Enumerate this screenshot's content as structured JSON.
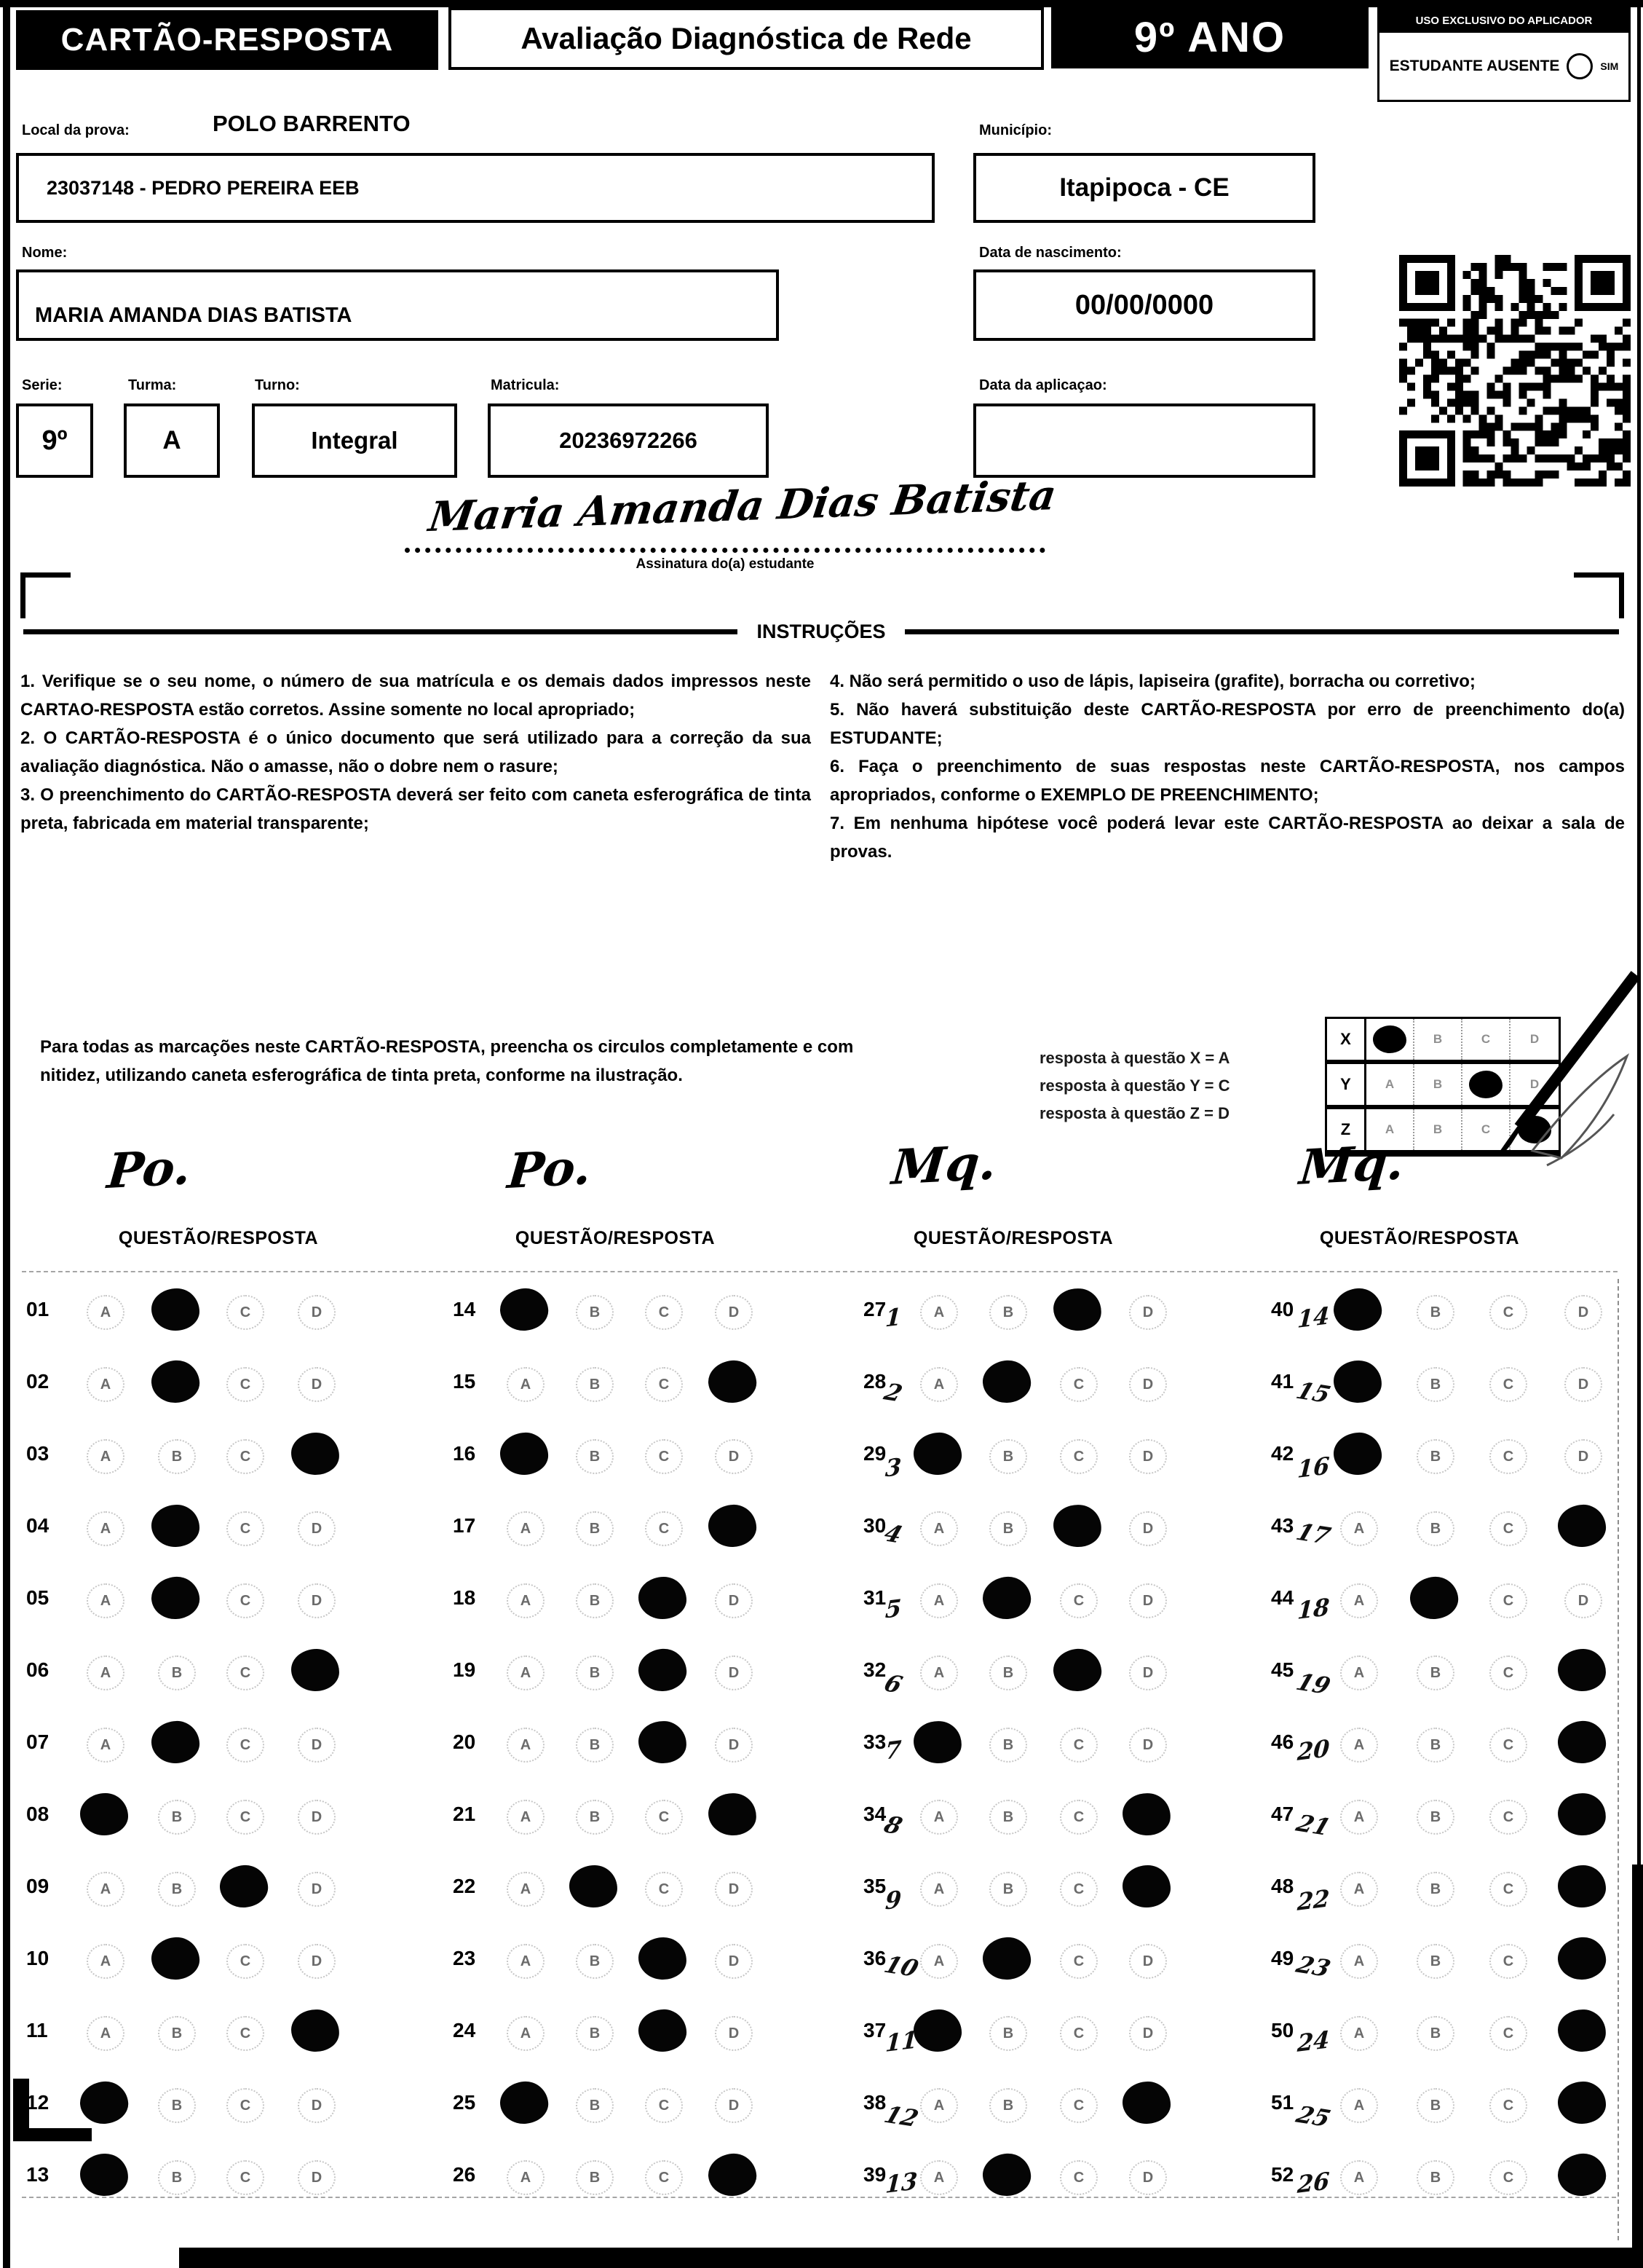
{
  "header": {
    "card_title": "CARTÃO-RESPOSTA",
    "exam_title": "Avaliação Diagnóstica de Rede",
    "grade": "9º ANO",
    "applicator": {
      "title": "USO EXCLUSIVO DO APLICADOR",
      "absent_label": "ESTUDANTE AUSENTE",
      "absent_option": "SIM"
    }
  },
  "student": {
    "local_label": "Local da prova:",
    "local_value": "POLO BARRENTO",
    "school_value": "23037148 - PEDRO PEREIRA EEB",
    "municipio_label": "Município:",
    "municipio_value": "Itapipoca - CE",
    "nome_label": "Nome:",
    "nome_value": "MARIA AMANDA DIAS BATISTA",
    "nascimento_label": "Data de nascimento:",
    "nascimento_value": "00/00/0000",
    "serie_label": "Serie:",
    "serie_value": "9º",
    "turma_label": "Turma:",
    "turma_value": "A",
    "turno_label": "Turno:",
    "turno_value": "Integral",
    "matricula_label": "Matricula:",
    "matricula_value": "20236972266",
    "aplicacao_label": "Data da aplicaçao:",
    "aplicacao_value": "",
    "signature_script": "Maria Amanda Dias Batista",
    "signature_label": "Assinatura do(a) estudante"
  },
  "instructions": {
    "title": "INSTRUÇÕES",
    "left": [
      "1. Verifique se o seu nome, o número de sua matrícula e os demais dados impressos neste CARTAO-RESPOSTA estão corretos. Assine somente no local apropriado;",
      "2. O CARTÃO-RESPOSTA é o único documento que será utilizado para a correção da sua avaliação diagnóstica. Não o amasse, não o dobre nem o rasure;",
      "3. O preenchimento do CARTÃO-RESPOSTA deverá ser feito com caneta esferográfica de tinta preta, fabricada em material transparente;"
    ],
    "right": [
      "4. Não será permitido o uso de lápis, lapiseira (grafite), borracha ou corretivo;",
      "5. Não haverá substituição deste CARTÃO-RESPOSTA por erro de preenchimento do(a) ESTUDANTE;",
      "6. Faça o preenchimento de suas respostas neste CARTÃO-RESPOSTA, nos campos apropriados, conforme o EXEMPLO DE PREENCHIMENTO;",
      "7. Em nenhuma hipótese você poderá levar este CARTÃO-RESPOSTA ao deixar a sala de provas."
    ]
  },
  "marking": {
    "paragraph": "Para todas as marcações neste CARTÃO-RESPOSTA, preencha os circulos completamente e com nitidez, utilizando caneta esferográfica de tinta preta, conforme na ilustração.",
    "example_lines": [
      "resposta à questão X = A",
      "resposta à questão Y = C",
      "resposta à questão Z = D"
    ],
    "example_grid": {
      "options": [
        "A",
        "B",
        "C",
        "D"
      ],
      "rows": [
        {
          "label": "X",
          "filled": "A"
        },
        {
          "label": "Y",
          "filled": "C"
        },
        {
          "label": "Z",
          "filled": "D"
        }
      ]
    }
  },
  "answers": {
    "column_header": "QUESTÃO/RESPOSTA",
    "options": [
      "A",
      "B",
      "C",
      "D"
    ],
    "columns": [
      {
        "handwriting": "Po.",
        "questions": [
          {
            "num": "01",
            "filled": "B"
          },
          {
            "num": "02",
            "filled": "B"
          },
          {
            "num": "03",
            "filled": "D"
          },
          {
            "num": "04",
            "filled": "B"
          },
          {
            "num": "05",
            "filled": "B"
          },
          {
            "num": "06",
            "filled": "D"
          },
          {
            "num": "07",
            "filled": "B"
          },
          {
            "num": "08",
            "filled": "A"
          },
          {
            "num": "09",
            "filled": "C"
          },
          {
            "num": "10",
            "filled": "B"
          },
          {
            "num": "11",
            "filled": "D"
          },
          {
            "num": "12",
            "filled": "A"
          },
          {
            "num": "13",
            "filled": "A"
          }
        ]
      },
      {
        "handwriting": "Po.",
        "questions": [
          {
            "num": "14",
            "filled": "A"
          },
          {
            "num": "15",
            "filled": "D"
          },
          {
            "num": "16",
            "filled": "A"
          },
          {
            "num": "17",
            "filled": "D"
          },
          {
            "num": "18",
            "filled": "C"
          },
          {
            "num": "19",
            "filled": "C"
          },
          {
            "num": "20",
            "filled": "C"
          },
          {
            "num": "21",
            "filled": "D"
          },
          {
            "num": "22",
            "filled": "B"
          },
          {
            "num": "23",
            "filled": "C"
          },
          {
            "num": "24",
            "filled": "C"
          },
          {
            "num": "25",
            "filled": "A"
          },
          {
            "num": "26",
            "filled": "D"
          }
        ]
      },
      {
        "handwriting": "Mq.",
        "questions": [
          {
            "num": "27",
            "hand": "1",
            "filled": "C"
          },
          {
            "num": "28",
            "hand": "2",
            "filled": "B"
          },
          {
            "num": "29",
            "hand": "3",
            "filled": "A"
          },
          {
            "num": "30",
            "hand": "4",
            "filled": "C"
          },
          {
            "num": "31",
            "hand": "5",
            "filled": "B"
          },
          {
            "num": "32",
            "hand": "6",
            "filled": "C"
          },
          {
            "num": "33",
            "hand": "7",
            "filled": "A"
          },
          {
            "num": "34",
            "hand": "8",
            "filled": "D"
          },
          {
            "num": "35",
            "hand": "9",
            "filled": "D"
          },
          {
            "num": "36",
            "hand": "10",
            "filled": "B"
          },
          {
            "num": "37",
            "hand": "11",
            "filled": "A"
          },
          {
            "num": "38",
            "hand": "12",
            "filled": "D"
          },
          {
            "num": "39",
            "hand": "13",
            "filled": "B"
          }
        ]
      },
      {
        "handwriting": "Mq.",
        "questions": [
          {
            "num": "40",
            "hand": "14",
            "filled": "A"
          },
          {
            "num": "41",
            "hand": "15",
            "filled": "A"
          },
          {
            "num": "42",
            "hand": "16",
            "filled": "A"
          },
          {
            "num": "43",
            "hand": "17",
            "filled": "D"
          },
          {
            "num": "44",
            "hand": "18",
            "filled": "B"
          },
          {
            "num": "45",
            "hand": "19",
            "filled": "D"
          },
          {
            "num": "46",
            "hand": "20",
            "filled": "D"
          },
          {
            "num": "47",
            "hand": "21",
            "filled": "D"
          },
          {
            "num": "48",
            "hand": "22",
            "filled": "D"
          },
          {
            "num": "49",
            "hand": "23",
            "filled": "D"
          },
          {
            "num": "50",
            "hand": "24",
            "filled": "D"
          },
          {
            "num": "51",
            "hand": "25",
            "filled": "D"
          },
          {
            "num": "52",
            "hand": "26",
            "filled": "D"
          }
        ]
      }
    ]
  },
  "colors": {
    "ink": "#000000",
    "faint_letter": "#6b6b6b",
    "paper": "#ffffff"
  }
}
